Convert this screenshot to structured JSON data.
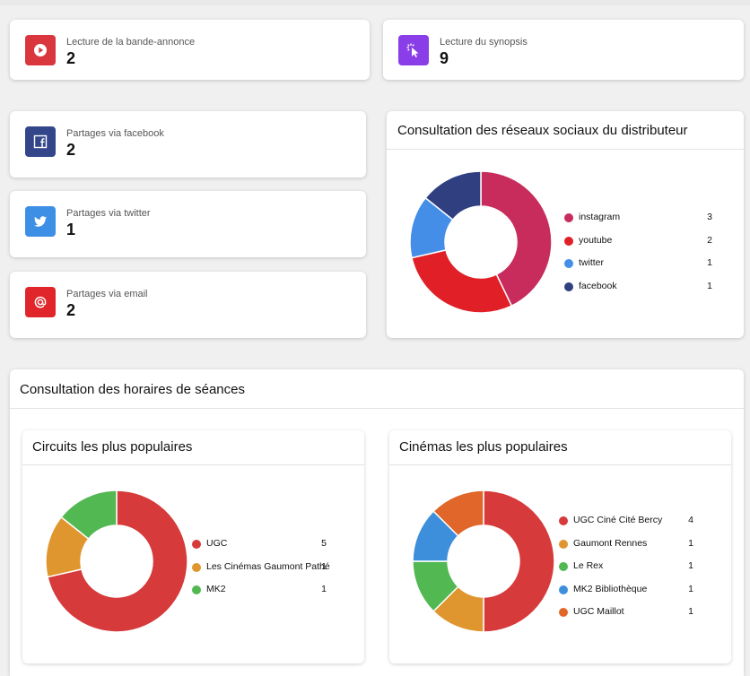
{
  "stats": {
    "trailer": {
      "label": "Lecture de la bande-annonce",
      "value": "2",
      "icon": "play-icon",
      "color": "#d9363e"
    },
    "synopsis": {
      "label": "Lecture du synopsis",
      "value": "9",
      "icon": "cursor-click-icon",
      "color": "#8a3ee8"
    },
    "facebook": {
      "label": "Partages via facebook",
      "value": "2",
      "icon": "facebook-icon",
      "color": "#34468a"
    },
    "twitter": {
      "label": "Partages via twitter",
      "value": "1",
      "icon": "twitter-icon",
      "color": "#3d8fe6"
    },
    "email": {
      "label": "Partages via email",
      "value": "2",
      "icon": "at-icon",
      "color": "#e0262a"
    }
  },
  "social": {
    "title": "Consultation des réseaux sociaux du distributeur"
  },
  "horaires": {
    "title": "Consultation des horaires de séances"
  },
  "circuits": {
    "title": "Circuits les plus populaires"
  },
  "cinemas": {
    "title": "Cinémas les plus populaires"
  },
  "chart_data": [
    {
      "type": "pie",
      "title": "Consultation des réseaux sociaux du distributeur",
      "categories": [
        "instagram",
        "youtube",
        "twitter",
        "facebook"
      ],
      "values": [
        3,
        2,
        1,
        1
      ],
      "colors": [
        "#c72c5c",
        "#e01f26",
        "#448ee8",
        "#2f3f80"
      ],
      "donut": true,
      "legend": "right"
    },
    {
      "type": "pie",
      "title": "Circuits les plus populaires",
      "categories": [
        "UGC",
        "Les Cinémas Gaumont Pathé",
        "MK2"
      ],
      "values": [
        5,
        1,
        1
      ],
      "colors": [
        "#d63a3a",
        "#e0962e",
        "#52b852"
      ],
      "donut": true,
      "legend": "right"
    },
    {
      "type": "pie",
      "title": "Cinémas les plus populaires",
      "categories": [
        "UGC Ciné Cité Bercy",
        "Gaumont Rennes",
        "Le Rex",
        "MK2 Bibliothèque",
        "UGC Maillot"
      ],
      "values": [
        4,
        1,
        1,
        1,
        1
      ],
      "colors": [
        "#d63a3a",
        "#e0962e",
        "#52b852",
        "#3d8fdc",
        "#e0662a"
      ],
      "donut": true,
      "legend": "right"
    }
  ]
}
